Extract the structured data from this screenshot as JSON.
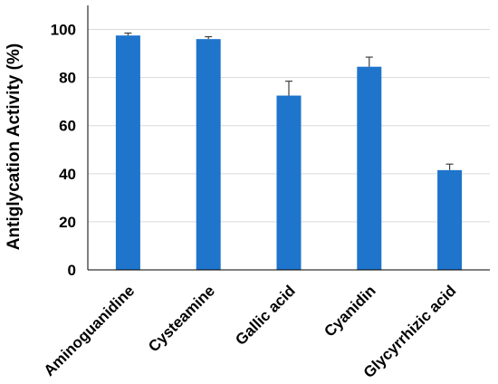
{
  "chart_data": {
    "type": "bar",
    "title": "",
    "xlabel": "",
    "ylabel": "Antiglycation Activity (%)",
    "ylim": [
      0,
      110
    ],
    "yticks": [
      0,
      20,
      40,
      60,
      80,
      100
    ],
    "grid": true,
    "categories": [
      "Aminoguanidine",
      "Cysteamine",
      "Gallic acid",
      "Cyanidin",
      "Glycyrrhizic acid"
    ],
    "series": [
      {
        "values": [
          97.5,
          96,
          72.5,
          84.5,
          41.5
        ],
        "errors": [
          1.0,
          1.0,
          6.0,
          4.0,
          2.5
        ],
        "color": "#1f74cc"
      }
    ],
    "colors": {
      "bar": "#1f74cc",
      "grid": "#d9d9d9",
      "axis": "#000000",
      "error_bar": "#404040"
    }
  }
}
